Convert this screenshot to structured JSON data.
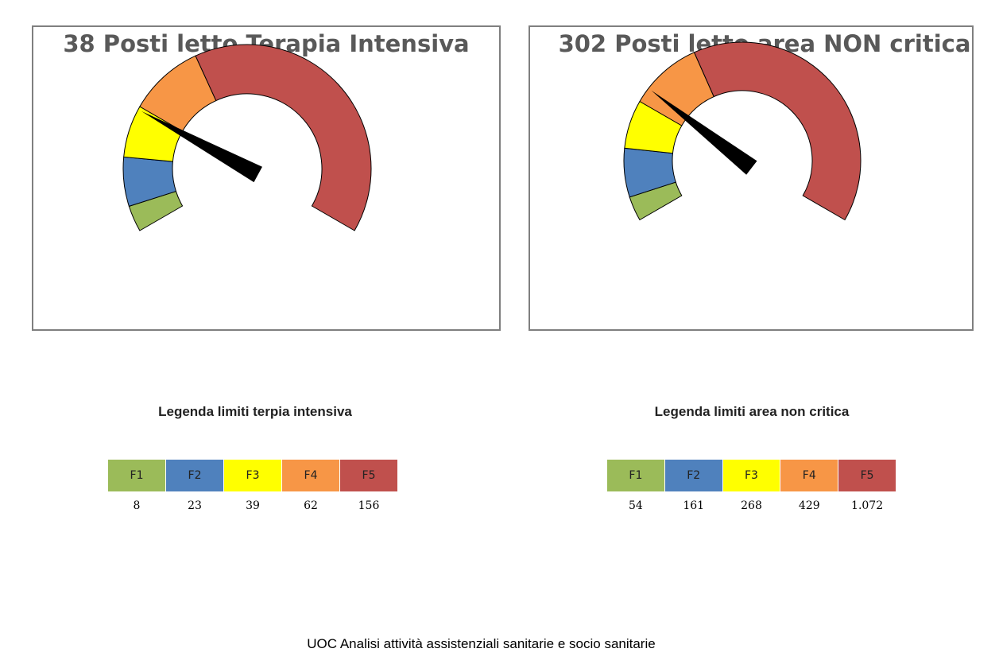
{
  "colors": {
    "F1": "#9bbb59",
    "F2": "#4f81bd",
    "F3": "#ffff00",
    "F4": "#f79646",
    "F5": "#c0504d",
    "needle": "#000000"
  },
  "chart_data": [
    {
      "type": "gauge",
      "title": "38 Posti letto Terapia Intensiva",
      "value": 38,
      "bands": [
        {
          "label": "F1",
          "max": 8
        },
        {
          "label": "F2",
          "max": 23
        },
        {
          "label": "F3",
          "max": 39
        },
        {
          "label": "F4",
          "max": 62
        },
        {
          "label": "F5",
          "max": 156
        }
      ]
    },
    {
      "type": "gauge",
      "title": "302 Posti letto area NON critica",
      "value": 302,
      "bands": [
        {
          "label": "F1",
          "max": 54
        },
        {
          "label": "F2",
          "max": 161
        },
        {
          "label": "F3",
          "max": 268
        },
        {
          "label": "F4",
          "max": 429
        },
        {
          "label": "F5",
          "max": 1072
        }
      ]
    }
  ],
  "legends": [
    {
      "title": "Legenda limiti terpia intensiva",
      "labels": [
        "F1",
        "F2",
        "F3",
        "F4",
        "F5"
      ],
      "values": [
        "8",
        "23",
        "39",
        "62",
        "156"
      ]
    },
    {
      "title": "Legenda limiti area non critica",
      "labels": [
        "F1",
        "F2",
        "F3",
        "F4",
        "F5"
      ],
      "values": [
        "54",
        "161",
        "268",
        "429",
        "1.072"
      ]
    }
  ],
  "footer": "UOC Analisi attività assistenziali sanitarie e socio sanitarie"
}
